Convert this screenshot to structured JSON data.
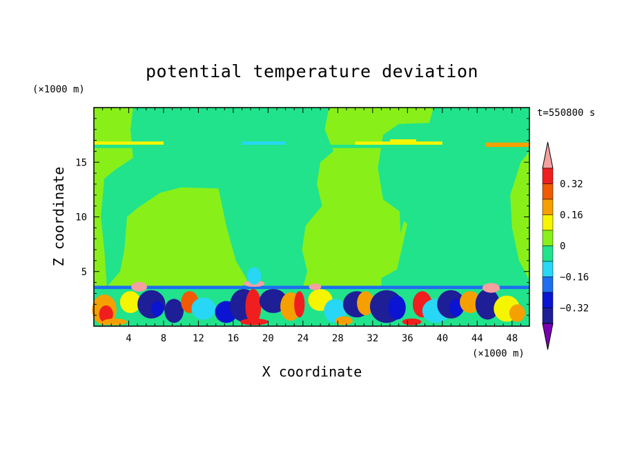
{
  "chart_data": {
    "type": "heatmap",
    "title": "potential temperature deviation",
    "xlabel": "X coordinate",
    "ylabel": "Z coordinate",
    "x_unit": "(×1000 m)",
    "y_unit": "(×1000 m)",
    "time_label": "t=550800 s",
    "xlim": [
      0,
      50
    ],
    "ylim": [
      0,
      20
    ],
    "x_ticks": [
      "4",
      "8",
      "12",
      "16",
      "20",
      "24",
      "28",
      "32",
      "36",
      "40",
      "44",
      "48"
    ],
    "y_ticks": [
      "5",
      "10",
      "15"
    ],
    "colorbar": {
      "levels": [
        -0.48,
        -0.4,
        -0.32,
        -0.24,
        -0.16,
        -0.08,
        0,
        0.08,
        0.16,
        0.24,
        0.32,
        0.4
      ],
      "colors": [
        "#7a00b4",
        "#1e1e96",
        "#0a14d2",
        "#1e6ef0",
        "#28d7f5",
        "#20e38c",
        "#88f018",
        "#f5f500",
        "#f5a000",
        "#f05a00",
        "#f01e1e",
        "#f5a0a0"
      ],
      "tick_labels": [
        "0.32",
        "0.16",
        "0",
        "−0.16",
        "−0.32"
      ]
    },
    "field_summary": "Upper domain mostly near-zero deviation (green/teal bands); lower ~0–3.5 km layer shows strong alternating positive (orange/red) and negative (blue/navy) anomalies."
  }
}
